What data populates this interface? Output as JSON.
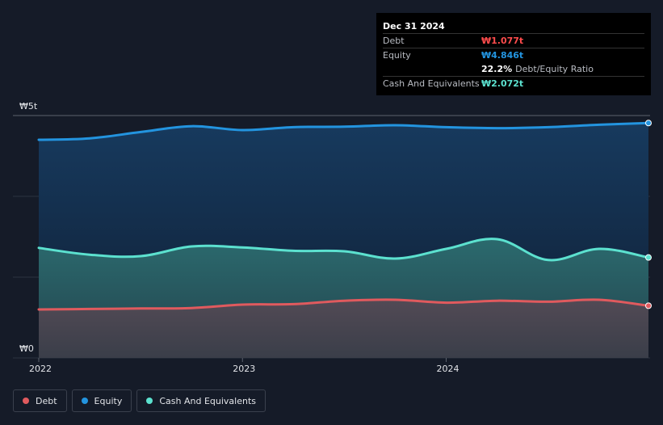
{
  "chart_data": {
    "type": "area",
    "x_start": 2022.0,
    "x_end": 2024.993,
    "ylim": [
      0,
      5
    ],
    "y_unit": "t",
    "y_ticks": [
      {
        "value": 5,
        "label": "₩5t"
      },
      {
        "value": 0,
        "label": "₩0"
      }
    ],
    "x_ticks": [
      {
        "value": 2022,
        "label": "2022"
      },
      {
        "value": 2023,
        "label": "2023"
      },
      {
        "value": 2024,
        "label": "2024"
      }
    ],
    "grid": true,
    "legend_position": "bottom-left",
    "series": [
      {
        "name": "Equity",
        "color": "#2394df",
        "x": [
          2022.0,
          2022.25,
          2022.5,
          2022.75,
          2023.0,
          2023.25,
          2023.5,
          2023.75,
          2024.0,
          2024.25,
          2024.5,
          2024.75,
          2024.993
        ],
        "values": [
          4.5,
          4.53,
          4.66,
          4.78,
          4.7,
          4.76,
          4.77,
          4.8,
          4.76,
          4.74,
          4.76,
          4.81,
          4.846
        ]
      },
      {
        "name": "Cash And Equivalents",
        "color": "#5ce1cf",
        "x": [
          2022.0,
          2022.25,
          2022.5,
          2022.75,
          2023.0,
          2023.25,
          2023.5,
          2023.75,
          2024.0,
          2024.25,
          2024.5,
          2024.75,
          2024.993
        ],
        "values": [
          2.27,
          2.13,
          2.1,
          2.3,
          2.28,
          2.21,
          2.2,
          2.05,
          2.25,
          2.45,
          2.02,
          2.25,
          2.072
        ]
      },
      {
        "name": "Debt",
        "color": "#e05a5e",
        "x": [
          2022.0,
          2022.25,
          2022.5,
          2022.75,
          2023.0,
          2023.25,
          2023.5,
          2023.75,
          2024.0,
          2024.25,
          2024.5,
          2024.75,
          2024.993
        ],
        "values": [
          1.0,
          1.01,
          1.02,
          1.03,
          1.1,
          1.11,
          1.18,
          1.2,
          1.14,
          1.18,
          1.16,
          1.2,
          1.077
        ]
      }
    ]
  },
  "tooltip": {
    "date": "Dec 31 2024",
    "rows": [
      {
        "label": "Debt",
        "value": "₩1.077t",
        "color": "#ff4c4c"
      },
      {
        "label": "Equity",
        "value": "₩4.846t",
        "color": "#2394df"
      },
      {
        "label": "",
        "value": "22.2%",
        "suffix": "Debt/Equity Ratio",
        "color": "#ffffff"
      },
      {
        "label": "Cash And Equivalents",
        "value": "₩2.072t",
        "color": "#5ce1cf"
      }
    ]
  },
  "legend": [
    {
      "label": "Debt",
      "color": "#e05a5e"
    },
    {
      "label": "Equity",
      "color": "#2394df"
    },
    {
      "label": "Cash And Equivalents",
      "color": "#5ce1cf"
    }
  ]
}
